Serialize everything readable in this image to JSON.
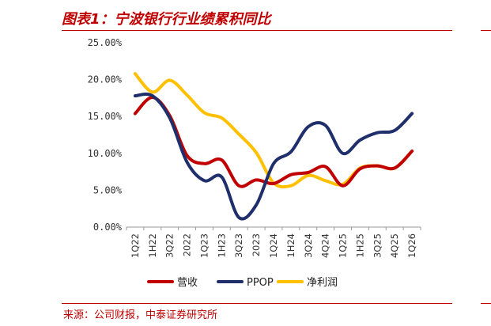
{
  "header": {
    "title": "图表1：宁波银行行业绩累积同比"
  },
  "footer": {
    "source": "来源：公司财报，中泰证券研究所"
  },
  "chart_data": {
    "type": "line",
    "title": "图表1：宁波银行行业绩累积同比",
    "xlabel": "",
    "ylabel": "",
    "ylim": [
      0,
      25
    ],
    "yticks": [
      "25.00%",
      "20.00%",
      "15.00%",
      "10.00%",
      "5.00%",
      "0.00%"
    ],
    "ytick_values": [
      25,
      20,
      15,
      10,
      5,
      0
    ],
    "grid": false,
    "legend_position": "bottom",
    "categories": [
      "1Q22",
      "1H22",
      "3Q22",
      "2022",
      "1Q23",
      "1H23",
      "3Q23",
      "2023",
      "1Q24",
      "1H24",
      "3Q24",
      "4Q24",
      "1Q25",
      "1H25",
      "3Q25",
      "4Q25",
      "1Q26"
    ],
    "series": [
      {
        "name": "营收",
        "color": "#c00000",
        "values": [
          15.4,
          17.6,
          15.1,
          9.7,
          8.6,
          9.1,
          5.6,
          6.4,
          5.9,
          7.1,
          7.4,
          8.2,
          5.6,
          7.9,
          8.3,
          8.0,
          10.3
        ]
      },
      {
        "name": "PPOP",
        "color": "#1f2f6b",
        "values": [
          17.8,
          17.8,
          14.8,
          8.8,
          6.3,
          6.8,
          1.3,
          3.0,
          8.6,
          10.2,
          13.6,
          13.8,
          10.0,
          11.8,
          12.8,
          13.1,
          15.4
        ]
      },
      {
        "name": "净利润",
        "color": "#ffc000",
        "values": [
          20.8,
          18.3,
          19.9,
          17.9,
          15.5,
          14.8,
          12.6,
          10.1,
          6.0,
          5.6,
          7.0,
          6.3,
          5.8,
          8.0,
          8.3,
          8.0,
          10.3
        ]
      }
    ]
  }
}
